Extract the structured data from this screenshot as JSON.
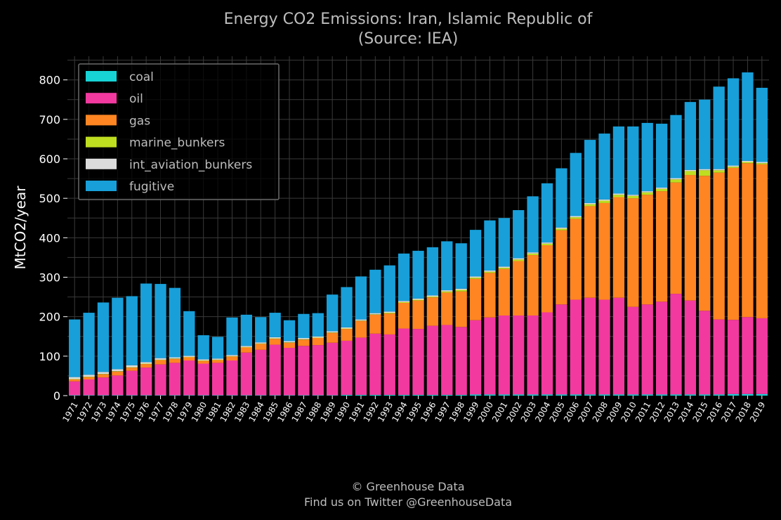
{
  "chart_data": {
    "type": "bar",
    "stacked": true,
    "title_line1": "Energy CO2 Emissions: Iran, Islamic Republic of",
    "title_line2": "(Source: IEA)",
    "ylabel": "MtCO2/year",
    "xlabel": "",
    "ylim": [
      0,
      860
    ],
    "yticks": [
      0,
      100,
      200,
      300,
      400,
      500,
      600,
      700,
      800
    ],
    "grid": true,
    "legend_position": "top-left",
    "categories": [
      "1971",
      "1972",
      "1973",
      "1974",
      "1975",
      "1976",
      "1977",
      "1978",
      "1979",
      "1980",
      "1981",
      "1982",
      "1983",
      "1984",
      "1985",
      "1986",
      "1987",
      "1988",
      "1989",
      "1990",
      "1991",
      "1992",
      "1993",
      "1994",
      "1995",
      "1996",
      "1997",
      "1998",
      "1999",
      "2000",
      "2001",
      "2002",
      "2003",
      "2004",
      "2005",
      "2006",
      "2007",
      "2008",
      "2009",
      "2010",
      "2011",
      "2012",
      "2013",
      "2014",
      "2015",
      "2016",
      "2017",
      "2018",
      "2019"
    ],
    "series": [
      {
        "name": "coal",
        "color": "#17d3d6",
        "values": [
          1,
          1,
          1,
          1,
          1,
          1,
          1,
          1,
          1,
          1,
          1,
          1,
          1,
          1,
          1,
          1,
          1,
          1,
          1,
          2,
          2,
          2,
          2,
          2,
          2,
          2,
          2,
          2,
          3,
          3,
          3,
          3,
          3,
          3,
          3,
          3,
          3,
          3,
          3,
          3,
          3,
          3,
          3,
          3,
          3,
          3,
          4,
          4,
          4
        ]
      },
      {
        "name": "oil",
        "color": "#f2399f",
        "values": [
          35,
          40,
          45,
          50,
          62,
          70,
          78,
          82,
          88,
          80,
          82,
          88,
          108,
          115,
          128,
          120,
          125,
          127,
          133,
          137,
          145,
          155,
          153,
          168,
          167,
          175,
          177,
          172,
          188,
          195,
          200,
          200,
          200,
          208,
          228,
          240,
          245,
          240,
          245,
          222,
          228,
          235,
          255,
          238,
          212,
          190,
          188,
          195,
          192
        ]
      },
      {
        "name": "gas",
        "color": "#fe8522",
        "values": [
          5,
          6,
          8,
          10,
          8,
          9,
          11,
          10,
          8,
          7,
          7,
          10,
          13,
          15,
          15,
          13,
          16,
          18,
          25,
          30,
          42,
          48,
          53,
          65,
          72,
          72,
          82,
          90,
          105,
          113,
          118,
          138,
          153,
          170,
          188,
          205,
          232,
          245,
          255,
          275,
          278,
          280,
          282,
          318,
          342,
          372,
          385,
          390,
          390
        ]
      },
      {
        "name": "marine_bunkers",
        "color": "#bede20",
        "values": [
          1,
          1,
          1,
          1,
          1,
          1,
          1,
          1,
          1,
          1,
          1,
          1,
          1,
          1,
          1,
          1,
          1,
          1,
          1,
          1,
          1,
          1,
          2,
          2,
          2,
          2,
          3,
          4,
          3,
          3,
          3,
          4,
          4,
          4,
          4,
          4,
          5,
          6,
          6,
          6,
          6,
          6,
          8,
          10,
          14,
          6,
          3,
          3,
          3
        ]
      },
      {
        "name": "int_aviation_bunkers",
        "color": "#dcdcdc",
        "values": [
          5,
          5,
          5,
          5,
          5,
          4,
          4,
          3,
          3,
          3,
          3,
          3,
          3,
          3,
          3,
          3,
          3,
          3,
          3,
          3,
          3,
          3,
          3,
          3,
          3,
          3,
          3,
          3,
          3,
          3,
          3,
          3,
          3,
          3,
          3,
          3,
          3,
          3,
          3,
          3,
          3,
          3,
          3,
          3,
          3,
          3,
          3,
          3,
          3
        ]
      },
      {
        "name": "fugitive",
        "color": "#189fd9",
        "values": [
          146,
          157,
          176,
          181,
          175,
          199,
          188,
          176,
          113,
          61,
          55,
          95,
          79,
          64,
          62,
          53,
          61,
          59,
          93,
          102,
          109,
          110,
          117,
          120,
          121,
          122,
          124,
          115,
          118,
          127,
          123,
          122,
          142,
          150,
          150,
          160,
          160,
          167,
          170,
          173,
          173,
          162,
          160,
          172,
          176,
          209,
          221,
          224,
          188
        ]
      }
    ]
  },
  "footer": {
    "line1": "© Greenhouse Data",
    "line2": "Find us on Twitter @GreenhouseData"
  }
}
